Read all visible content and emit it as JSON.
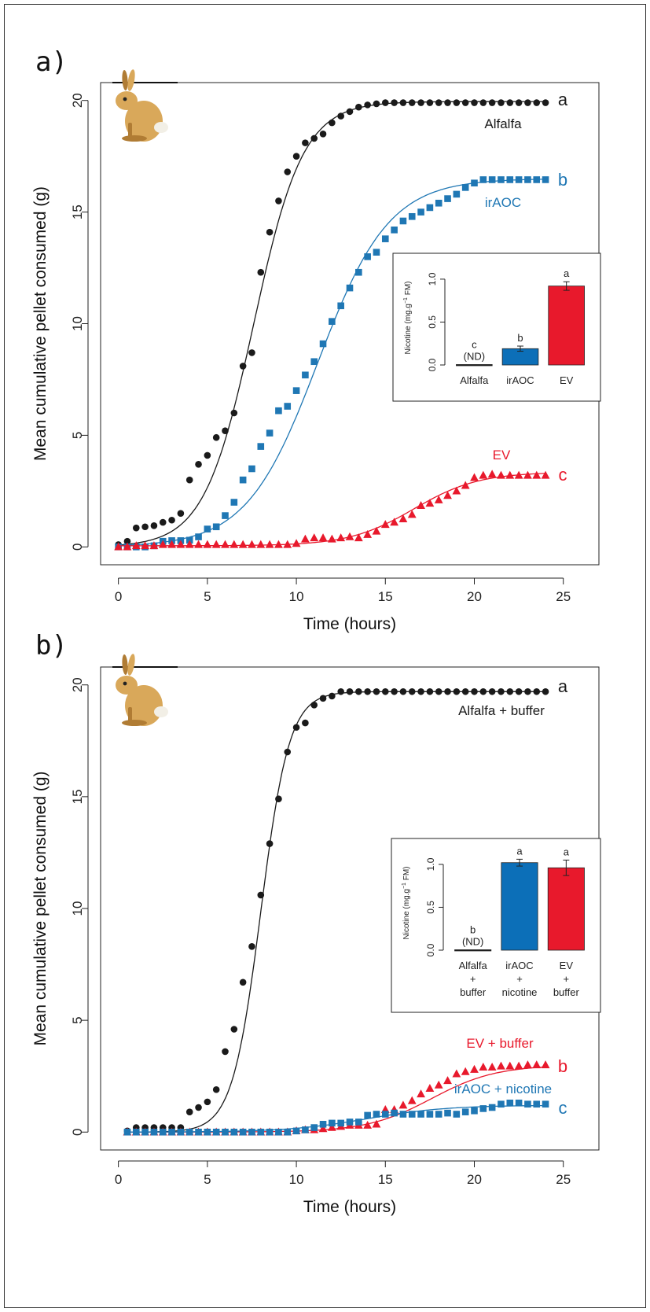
{
  "colors": {
    "alfalfa": "#1a1a1a",
    "irAOC": "#1f77b4",
    "EV": "#e8192c",
    "bar_blue": "#0c6fb8",
    "bar_red": "#e8192c",
    "frame": "#222222"
  },
  "icons": {
    "rabbit": "rabbit-icon"
  },
  "chart_data": [
    {
      "type": "scatter",
      "panel_label": "a)",
      "xlabel": "Time (hours)",
      "ylabel": "Mean cumulative pellet consumed (g)",
      "xlim": [
        -1,
        27
      ],
      "ylim": [
        -0.8,
        20.8
      ],
      "xticks": [
        0,
        5,
        10,
        15,
        20,
        25
      ],
      "yticks": [
        0,
        5,
        10,
        15,
        20
      ],
      "series": [
        {
          "name": "Alfalfa",
          "letter": "a",
          "marker": "circle",
          "color": "#1a1a1a",
          "x": [
            0,
            0.5,
            1,
            1.5,
            2,
            2.5,
            3,
            3.5,
            4,
            4.5,
            5,
            5.5,
            6,
            6.5,
            7,
            7.5,
            8,
            8.5,
            9,
            9.5,
            10,
            10.5,
            11,
            11.5,
            12,
            12.5,
            13,
            13.5,
            14,
            14.5,
            15,
            15.5,
            16,
            16.5,
            17,
            17.5,
            18,
            18.5,
            19,
            19.5,
            20,
            20.5,
            21,
            21.5,
            22,
            22.5,
            23,
            23.5,
            24
          ],
          "y": [
            0.1,
            0.25,
            0.85,
            0.9,
            0.95,
            1.1,
            1.2,
            1.5,
            3.0,
            3.7,
            4.1,
            4.9,
            5.2,
            6.0,
            8.1,
            8.7,
            12.3,
            14.1,
            15.5,
            16.8,
            17.5,
            18.1,
            18.3,
            18.5,
            19.0,
            19.3,
            19.5,
            19.7,
            19.8,
            19.85,
            19.9,
            19.9,
            19.9,
            19.9,
            19.9,
            19.9,
            19.9,
            19.9,
            19.9,
            19.9,
            19.9,
            19.9,
            19.9,
            19.9,
            19.9,
            19.9,
            19.9,
            19.9,
            19.9
          ],
          "fit": {
            "type": "logistic",
            "K": 19.95,
            "r": 0.72,
            "x0": 7.6,
            "c": 0
          }
        },
        {
          "name": "irAOC",
          "letter": "b",
          "marker": "square",
          "color": "#1f77b4",
          "x": [
            0,
            0.5,
            1,
            1.5,
            2,
            2.5,
            3,
            3.5,
            4,
            4.5,
            5,
            5.5,
            6,
            6.5,
            7,
            7.5,
            8,
            8.5,
            9,
            9.5,
            10,
            10.5,
            11,
            11.5,
            12,
            12.5,
            13,
            13.5,
            14,
            14.5,
            15,
            15.5,
            16,
            16.5,
            17,
            17.5,
            18,
            18.5,
            19,
            19.5,
            20,
            20.5,
            21,
            21.5,
            22,
            22.5,
            23,
            23.5,
            24
          ],
          "y": [
            0,
            0,
            0,
            0,
            0.05,
            0.25,
            0.28,
            0.28,
            0.3,
            0.45,
            0.8,
            0.9,
            1.4,
            2.0,
            3.0,
            3.5,
            4.5,
            5.1,
            6.1,
            6.3,
            7.0,
            7.7,
            8.3,
            9.1,
            10.1,
            10.8,
            11.6,
            12.3,
            13.0,
            13.2,
            13.8,
            14.2,
            14.6,
            14.8,
            15.0,
            15.2,
            15.4,
            15.6,
            15.8,
            16.1,
            16.3,
            16.45,
            16.45,
            16.45,
            16.45,
            16.45,
            16.45,
            16.45,
            16.45
          ],
          "fit": {
            "type": "logistic",
            "K": 16.5,
            "r": 0.5,
            "x0": 11.2,
            "c": 0
          }
        },
        {
          "name": "EV",
          "letter": "c",
          "marker": "triangle",
          "color": "#e8192c",
          "x": [
            0,
            0.5,
            1,
            1.5,
            2,
            2.5,
            3,
            3.5,
            4,
            4.5,
            5,
            5.5,
            6,
            6.5,
            7,
            7.5,
            8,
            8.5,
            9,
            9.5,
            10,
            10.5,
            11,
            11.5,
            12,
            12.5,
            13,
            13.5,
            14,
            14.5,
            15,
            15.5,
            16,
            16.5,
            17,
            17.5,
            18,
            18.5,
            19,
            19.5,
            20,
            20.5,
            21,
            21.5,
            22,
            22.5,
            23,
            23.5,
            24
          ],
          "y": [
            0,
            0,
            0.05,
            0.05,
            0.05,
            0.1,
            0.1,
            0.1,
            0.1,
            0.1,
            0.1,
            0.1,
            0.1,
            0.1,
            0.1,
            0.1,
            0.1,
            0.1,
            0.1,
            0.1,
            0.15,
            0.35,
            0.4,
            0.4,
            0.35,
            0.4,
            0.45,
            0.4,
            0.55,
            0.7,
            1.0,
            1.1,
            1.25,
            1.45,
            1.85,
            1.95,
            2.1,
            2.3,
            2.5,
            2.75,
            3.1,
            3.2,
            3.25,
            3.2,
            3.2,
            3.2,
            3.2,
            3.2,
            3.2
          ],
          "fit": {
            "type": "logistic",
            "K": 3.35,
            "r": 0.55,
            "x0": 16.6,
            "c": 0.05
          }
        }
      ],
      "inset": {
        "type": "bar",
        "ylabel": "Nicotine (mg.g^-1 FM)",
        "ylabel_parts": [
          "Nicotine (mg.g",
          "−1",
          " FM)"
        ],
        "ylim": [
          0,
          1.1
        ],
        "yticks": [
          "0.0",
          "0.5",
          "1.0"
        ],
        "categories": [
          [
            "Alfalfa"
          ],
          [
            "irAOC"
          ],
          [
            "EV"
          ]
        ],
        "values": [
          0.005,
          0.19,
          0.92
        ],
        "errors": [
          0,
          0.03,
          0.05
        ],
        "letters": [
          "c\n(ND)",
          "b",
          "a"
        ],
        "bar_colors": [
          "#1a1a1a",
          "#0c6fb8",
          "#e8192c"
        ]
      }
    },
    {
      "type": "scatter",
      "panel_label": "b)",
      "xlabel": "Time (hours)",
      "ylabel": "Mean cumulative pellet consumed (g)",
      "xlim": [
        -1,
        27
      ],
      "ylim": [
        -0.8,
        20.8
      ],
      "xticks": [
        0,
        5,
        10,
        15,
        20,
        25
      ],
      "yticks": [
        0,
        5,
        10,
        15,
        20
      ],
      "series": [
        {
          "name": "Alfalfa + buffer",
          "letter": "a",
          "marker": "circle",
          "color": "#1a1a1a",
          "x": [
            0.5,
            1,
            1.5,
            2,
            2.5,
            3,
            3.5,
            4,
            4.5,
            5,
            5.5,
            6,
            6.5,
            7,
            7.5,
            8,
            8.5,
            9,
            9.5,
            10,
            10.5,
            11,
            11.5,
            12,
            12.5,
            13,
            13.5,
            14,
            14.5,
            15,
            15.5,
            16,
            16.5,
            17,
            17.5,
            18,
            18.5,
            19,
            19.5,
            20,
            20.5,
            21,
            21.5,
            22,
            22.5,
            23,
            23.5,
            24
          ],
          "y": [
            0.05,
            0.2,
            0.2,
            0.2,
            0.2,
            0.2,
            0.2,
            0.9,
            1.1,
            1.35,
            1.9,
            3.6,
            4.6,
            6.7,
            8.3,
            10.6,
            12.9,
            14.9,
            17.0,
            18.1,
            18.3,
            19.1,
            19.4,
            19.5,
            19.7,
            19.7,
            19.7,
            19.7,
            19.7,
            19.7,
            19.7,
            19.7,
            19.7,
            19.7,
            19.7,
            19.7,
            19.7,
            19.7,
            19.7,
            19.7,
            19.7,
            19.7,
            19.7,
            19.7,
            19.7,
            19.7,
            19.7,
            19.7
          ],
          "fit": {
            "type": "logistic",
            "K": 19.7,
            "r": 1.25,
            "x0": 8.0,
            "c": 0
          }
        },
        {
          "name": "EV + buffer",
          "letter": "b",
          "marker": "triangle",
          "color": "#e8192c",
          "x": [
            0.5,
            1,
            1.5,
            2,
            2.5,
            3,
            3.5,
            4,
            4.5,
            5,
            5.5,
            6,
            6.5,
            7,
            7.5,
            8,
            8.5,
            9,
            9.5,
            10,
            10.5,
            11,
            11.5,
            12,
            12.5,
            13,
            13.5,
            14,
            14.5,
            15,
            15.5,
            16,
            16.5,
            17,
            17.5,
            18,
            18.5,
            19,
            19.5,
            20,
            20.5,
            21,
            21.5,
            22,
            22.5,
            23,
            23.5,
            24
          ],
          "y": [
            0,
            0,
            0,
            0,
            0,
            0,
            0,
            0,
            0,
            0,
            0,
            0,
            0,
            0,
            0,
            0,
            0,
            0,
            0,
            0.05,
            0.1,
            0.1,
            0.15,
            0.2,
            0.25,
            0.3,
            0.3,
            0.3,
            0.35,
            1.0,
            1.0,
            1.2,
            1.4,
            1.7,
            1.95,
            2.1,
            2.3,
            2.6,
            2.7,
            2.8,
            2.9,
            2.9,
            2.95,
            2.95,
            2.95,
            3.0,
            3.0,
            3.0
          ],
          "fit": {
            "type": "logistic",
            "K": 3.0,
            "r": 0.55,
            "x0": 17.6,
            "c": 0
          }
        },
        {
          "name": "irAOC + nicotine",
          "letter": "c",
          "marker": "square",
          "color": "#1f77b4",
          "x": [
            0.5,
            1,
            1.5,
            2,
            2.5,
            3,
            3.5,
            4,
            4.5,
            5,
            5.5,
            6,
            6.5,
            7,
            7.5,
            8,
            8.5,
            9,
            9.5,
            10,
            10.5,
            11,
            11.5,
            12,
            12.5,
            13,
            13.5,
            14,
            14.5,
            15,
            15.5,
            16,
            16.5,
            17,
            17.5,
            18,
            18.5,
            19,
            19.5,
            20,
            20.5,
            21,
            21.5,
            22,
            22.5,
            23,
            23.5,
            24
          ],
          "y": [
            0,
            0,
            0,
            0,
            0,
            0,
            0,
            0,
            0,
            0,
            0,
            0,
            0,
            0,
            0,
            0,
            0,
            0,
            0,
            0.05,
            0.1,
            0.2,
            0.35,
            0.4,
            0.4,
            0.45,
            0.45,
            0.75,
            0.8,
            0.8,
            0.85,
            0.8,
            0.8,
            0.8,
            0.8,
            0.8,
            0.85,
            0.8,
            0.9,
            0.95,
            1.05,
            1.1,
            1.25,
            1.3,
            1.3,
            1.25,
            1.25,
            1.25
          ],
          "fit": {
            "type": "logistic",
            "K": 1.2,
            "r": 0.45,
            "x0": 14.0,
            "c": 0
          }
        }
      ],
      "inset": {
        "type": "bar",
        "ylabel": "Nicotine (mg.g^-1 FM)",
        "ylabel_parts": [
          "Nicotine (mg.g",
          "−1",
          " FM)"
        ],
        "ylim": [
          0,
          1.1
        ],
        "yticks": [
          "0.0",
          "0.5",
          "1.0"
        ],
        "categories": [
          [
            "Alfalfa",
            "+",
            "buffer"
          ],
          [
            "irAOC",
            "+",
            "nicotine"
          ],
          [
            "EV",
            "+",
            "buffer"
          ]
        ],
        "values": [
          0.005,
          1.02,
          0.96
        ],
        "errors": [
          0,
          0.04,
          0.09
        ],
        "letters": [
          "b\n(ND)",
          "a",
          "a"
        ],
        "bar_colors": [
          "#1a1a1a",
          "#0c6fb8",
          "#e8192c"
        ]
      }
    }
  ]
}
